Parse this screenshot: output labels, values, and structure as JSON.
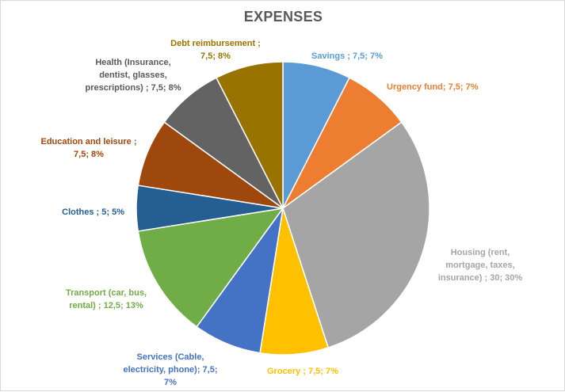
{
  "chart_data": {
    "type": "pie",
    "title": "EXPENSES",
    "categories": [
      "Savings",
      "Urgency fund",
      "Housing (rent, mortgage, taxes, insurance)",
      "Grocery",
      "Services (Cable, electricity, phone)",
      "Transport (car, bus, rental)",
      "Clothes",
      "Education and leisure",
      "Health (Insurance, dentist, glasses, prescriptions)",
      "Debt reimbursement"
    ],
    "values": [
      7.5,
      7.5,
      30,
      7.5,
      7.5,
      12.5,
      5,
      7.5,
      7.5,
      7.5
    ],
    "colors": [
      "#5b9bd5",
      "#ed7d31",
      "#a5a5a5",
      "#ffc000",
      "#4472c4",
      "#70ad47",
      "#255e91",
      "#9e480e",
      "#636363",
      "#997300"
    ],
    "label_colors": [
      "#5b9bd5",
      "#ed7d31",
      "#a5a5a5",
      "#ffc000",
      "#4472c4",
      "#70ad47",
      "#255e91",
      "#9e480e",
      "#595959",
      "#997300"
    ],
    "data_labels": [
      [
        "Savings  ; 7,5; 7%"
      ],
      [
        "Urgency fund; 7,5; 7%"
      ],
      [
        "Housing (rent,",
        "mortgage, taxes,",
        "insurance)  ; 30; 30%"
      ],
      [
        "Grocery  ; 7,5; 7%"
      ],
      [
        "Services (Cable,",
        "electricity, phone); 7,5;",
        "7%"
      ],
      [
        "Transport (car, bus,",
        "rental) ; 12,5; 13%"
      ],
      [
        "Clothes ; 5; 5%"
      ],
      [
        "Education and leisure ;",
        "7,5; 8%"
      ],
      [
        "Health (Insurance,",
        "dentist, glasses,",
        "prescriptions) ; 7,5; 8%"
      ],
      [
        "Debt reimbursement ;",
        "7,5; 8%"
      ]
    ],
    "legend": "none",
    "start_angle_deg": 0,
    "direction": "clockwise"
  }
}
